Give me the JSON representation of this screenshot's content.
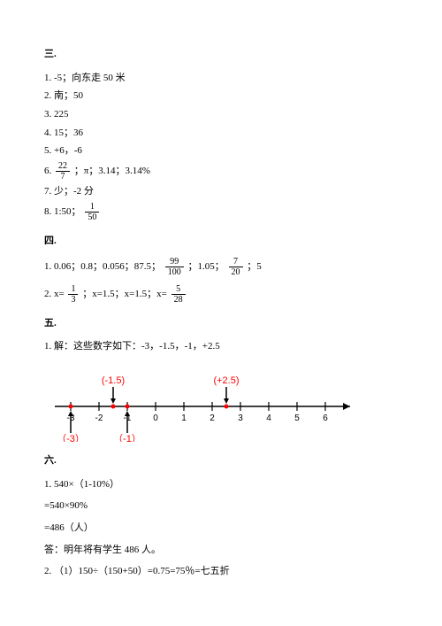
{
  "s3": {
    "title": "三.",
    "a1": "1. -5；向东走 50 米",
    "a2": "2. 南；50",
    "a3": "3. 225",
    "a4": "4. 15；36",
    "a5": "5. +6，-6",
    "a6_pre": "6. ",
    "a6_frac": {
      "num": "22",
      "den": "7"
    },
    "a6_post": " ；π；3.14；3.14%",
    "a7": "7. 少；-2 分",
    "a8_pre": "8. 1:50；",
    "a8_frac": {
      "num": "1",
      "den": "50"
    }
  },
  "s4": {
    "title": "四.",
    "a1_pre": "1. 0.06；0.8；0.056；87.5；",
    "a1_f1": {
      "num": "99",
      "den": "100"
    },
    "a1_mid1": " ；1.05；",
    "a1_f2": {
      "num": "7",
      "den": "20"
    },
    "a1_post": " ；5",
    "a2_pre": "2. x= ",
    "a2_f1": {
      "num": "1",
      "den": "3"
    },
    "a2_mid": " ；x=1.5；x=1.5；x= ",
    "a2_f2": {
      "num": "5",
      "den": "28"
    }
  },
  "s5": {
    "title": "五.",
    "a1": "1. 解：这些数字如下：-3，-1.5，-1，+2.5",
    "numberline": {
      "ticks": [
        -3,
        -2,
        -1,
        0,
        1,
        2,
        3,
        4,
        5,
        6
      ],
      "top_labels": [
        {
          "text": "(-1.5)",
          "x": -1.5,
          "color": "#ff0000"
        },
        {
          "text": "(+2.5)",
          "x": 2.5,
          "color": "#ff0000"
        }
      ],
      "bottom_labels": [
        {
          "text": "（-3）",
          "x": -3,
          "color": "#ff0000"
        },
        {
          "text": "（-1）",
          "x": -1,
          "color": "#ff0000"
        }
      ],
      "red_points": [
        -3,
        -1.5,
        -1,
        2.5
      ],
      "arrows_down_at": [
        -1.5,
        2.5
      ],
      "arrows_up_at": [
        -3,
        -1
      ],
      "axis_color": "#000",
      "point_color": "#ff0000"
    }
  },
  "s6": {
    "title": "六.",
    "l1": "1. 540×（1-10%）",
    "l2": "=540×90%",
    "l3": "=486（人）",
    "l4": "答：明年将有学生 486 人。",
    "l5": "2. （1）150÷（150+50）=0.75=75％=七五折"
  }
}
